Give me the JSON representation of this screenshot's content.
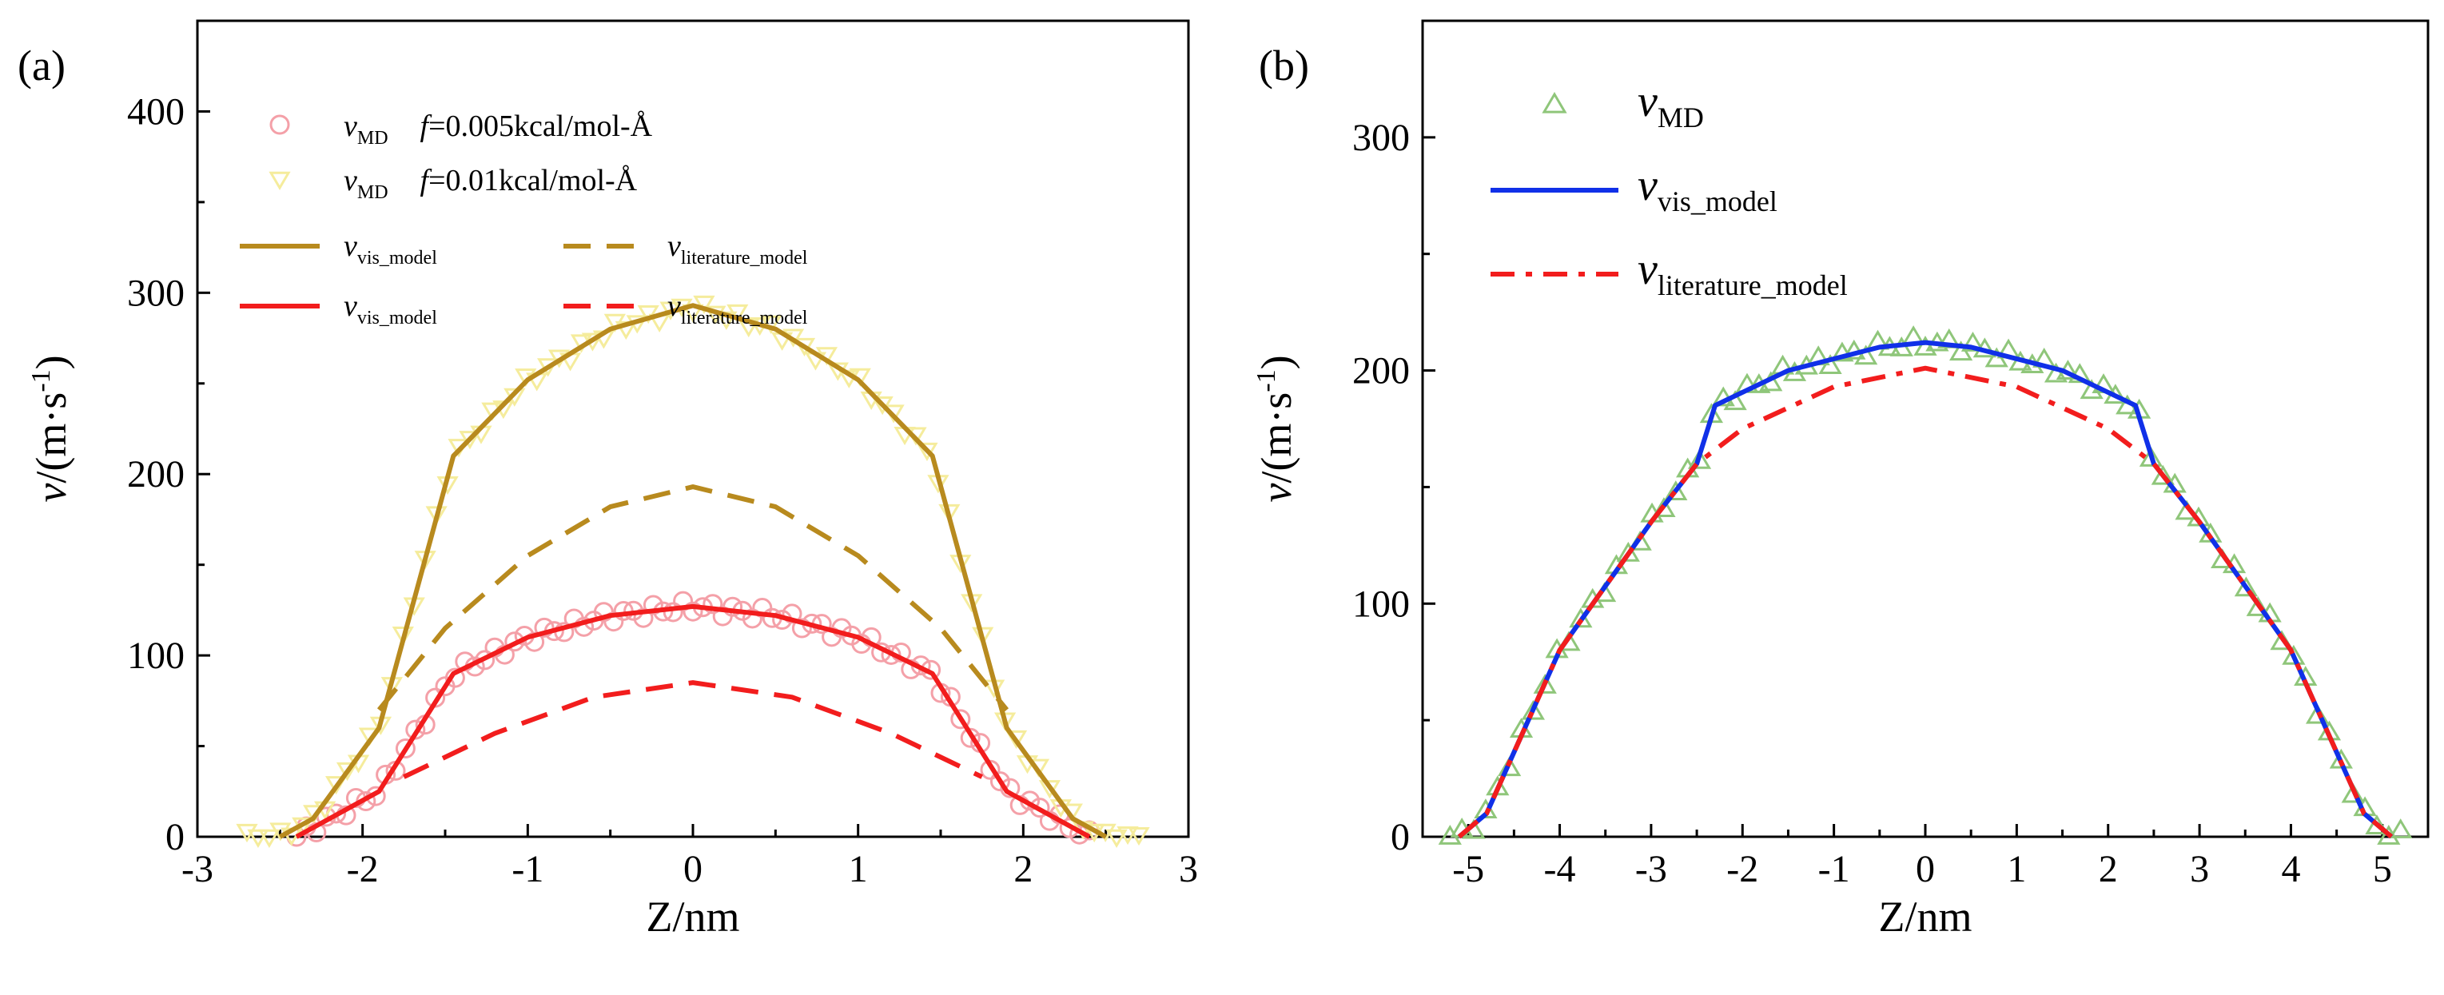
{
  "chart_data": [
    {
      "type": "line",
      "panel_label": "(a)",
      "xlabel": "Z/nm",
      "ylabel": "v/(m·s-1)",
      "xlim": [
        -3,
        3
      ],
      "ylim": [
        0,
        450
      ],
      "xticks": [
        -3,
        -2,
        -1,
        0,
        1,
        2,
        3
      ],
      "yticks": [
        0,
        100,
        200,
        300,
        400
      ],
      "legend": [
        {
          "sym": "v",
          "sub": "MD",
          "extra": "f",
          "extra_rest": "=0.005kcal/mol-Å",
          "color": "#f4a0a8",
          "kind": "circle"
        },
        {
          "sym": "v",
          "sub": "MD",
          "extra": "f",
          "extra_rest": "=0.01kcal/mol-Å",
          "color": "#f5ec9c",
          "kind": "triangle-down"
        },
        {
          "sym": "v",
          "sub": "vis_model",
          "color": "#b88a1e",
          "kind": "solid"
        },
        {
          "sym": "v",
          "sub": "literature_model",
          "color": "#b88a1e",
          "kind": "dashed"
        },
        {
          "sym": "v",
          "sub": "vis_model",
          "color": "#f21d1d",
          "kind": "solid"
        },
        {
          "sym": "v",
          "sub": "literature_model",
          "color": "#f21d1d",
          "kind": "dashed"
        }
      ],
      "series": [
        {
          "color": "#b88a1e",
          "style": "solid",
          "points": [
            [
              -2.5,
              0
            ],
            [
              -2.3,
              10
            ],
            [
              -1.9,
              60
            ],
            [
              -1.45,
              210
            ],
            [
              -1.0,
              252
            ],
            [
              -0.5,
              280
            ],
            [
              0,
              293
            ],
            [
              0.5,
              280
            ],
            [
              1.0,
              252
            ],
            [
              1.45,
              210
            ],
            [
              1.9,
              60
            ],
            [
              2.3,
              10
            ],
            [
              2.5,
              0
            ]
          ]
        },
        {
          "color": "#b88a1e",
          "style": "dashed",
          "points": [
            [
              -1.9,
              70
            ],
            [
              -1.5,
              115
            ],
            [
              -1.0,
              155
            ],
            [
              -0.5,
              182
            ],
            [
              0,
              193
            ],
            [
              0.5,
              182
            ],
            [
              1.0,
              155
            ],
            [
              1.5,
              115
            ],
            [
              1.9,
              70
            ]
          ]
        },
        {
          "color": "#f21d1d",
          "style": "solid",
          "points": [
            [
              -2.4,
              0
            ],
            [
              -1.9,
              25
            ],
            [
              -1.45,
              90
            ],
            [
              -1.0,
              110
            ],
            [
              -0.5,
              122
            ],
            [
              0,
              127
            ],
            [
              0.5,
              122
            ],
            [
              1.0,
              110
            ],
            [
              1.45,
              90
            ],
            [
              1.9,
              25
            ],
            [
              2.4,
              0
            ]
          ]
        },
        {
          "color": "#f21d1d",
          "style": "dashed",
          "points": [
            [
              -1.75,
              33
            ],
            [
              -1.2,
              57
            ],
            [
              -0.6,
              77
            ],
            [
              0,
              85
            ],
            [
              0.6,
              77
            ],
            [
              1.2,
              57
            ],
            [
              1.75,
              33
            ]
          ]
        }
      ],
      "scatter": [
        {
          "color": "#f4a0a8",
          "marker": "circle",
          "model_series": 2,
          "xrange": [
            -2.4,
            2.4
          ]
        },
        {
          "color": "#f5ec9c",
          "marker": "triangle-down",
          "model_series": 0,
          "xrange": [
            -2.7,
            2.7
          ]
        }
      ]
    },
    {
      "type": "line",
      "panel_label": "(b)",
      "xlabel": "Z/nm",
      "ylabel": "v/(m·s-1)",
      "xlim": [
        -5.5,
        5.5
      ],
      "ylim": [
        0,
        350
      ],
      "xticks": [
        -5,
        -4,
        -3,
        -2,
        -1,
        0,
        1,
        2,
        3,
        4,
        5
      ],
      "yticks": [
        0,
        100,
        200,
        300
      ],
      "legend": [
        {
          "sym": "v",
          "sub": "MD",
          "color": "#8fc67a",
          "kind": "triangle-up"
        },
        {
          "sym": "v",
          "sub": "vis_model",
          "color": "#1030e8",
          "kind": "solid"
        },
        {
          "sym": "v",
          "sub": "literature_model",
          "color": "#f21d1d",
          "kind": "dashdot"
        }
      ],
      "series": [
        {
          "color": "#1030e8",
          "style": "solid",
          "points": [
            [
              -5.1,
              0
            ],
            [
              -4.8,
              10
            ],
            [
              -4.0,
              80
            ],
            [
              -3.0,
              135
            ],
            [
              -2.5,
              160
            ],
            [
              -2.3,
              185
            ],
            [
              -1.5,
              200
            ],
            [
              -0.5,
              210
            ],
            [
              0,
              212
            ],
            [
              0.5,
              210
            ],
            [
              1.5,
              200
            ],
            [
              2.3,
              185
            ],
            [
              2.5,
              160
            ],
            [
              3.0,
              135
            ],
            [
              4.0,
              80
            ],
            [
              4.8,
              10
            ],
            [
              5.1,
              0
            ]
          ]
        },
        {
          "color": "#f21d1d",
          "style": "dashdot",
          "points": [
            [
              -5.1,
              0
            ],
            [
              -4.8,
              10
            ],
            [
              -4.0,
              80
            ],
            [
              -3.0,
              135
            ],
            [
              -2.5,
              160
            ],
            [
              -2.0,
              175
            ],
            [
              -1.0,
              193
            ],
            [
              0,
              201
            ],
            [
              1.0,
              193
            ],
            [
              2.0,
              175
            ],
            [
              2.5,
              160
            ],
            [
              3.0,
              135
            ],
            [
              4.0,
              80
            ],
            [
              4.8,
              10
            ],
            [
              5.1,
              0
            ]
          ]
        }
      ],
      "scatter": [
        {
          "color": "#8fc67a",
          "marker": "triangle-up",
          "model_series": 0,
          "xrange": [
            -5.2,
            5.2
          ]
        }
      ]
    }
  ]
}
